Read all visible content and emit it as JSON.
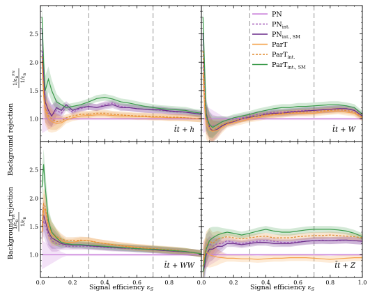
{
  "chart_data": {
    "type": "line",
    "xlabel": "Signal efficiency ε",
    "xlabel_sub": "S",
    "ylabel": "Background rejection",
    "ylabel_ratio_num": "1/ε",
    "ylabel_ratio_num_sub": "B",
    "ylabel_ratio_num_sup": "PN",
    "ylabel_ratio_den": "1/ε",
    "ylabel_ratio_den_sub": "B",
    "xlim": [
      0.0,
      1.0
    ],
    "ylim": [
      0.6,
      3.0
    ],
    "xticks": [
      "0.0",
      "0.2",
      "0.4",
      "0.6",
      "0.8",
      "1.0"
    ],
    "yticks": [
      "1.0",
      "1.5",
      "2.0",
      "2.5"
    ],
    "vlines": [
      0.3,
      0.7
    ],
    "legend": {
      "placement": "top-right of upper-right panel",
      "entries": [
        {
          "base": "PN",
          "sub": "",
          "color": "#c77dd9",
          "dash": "solid"
        },
        {
          "base": "PN",
          "sub": "int.",
          "color": "#a35ab8",
          "dash": "dashed"
        },
        {
          "base": "PN",
          "sub": "int., SM",
          "color": "#6a2c8a",
          "dash": "solid"
        },
        {
          "base": "ParT",
          "sub": "",
          "color": "#f5a24a",
          "dash": "solid"
        },
        {
          "base": "ParT",
          "sub": "int.",
          "color": "#e08a2e",
          "dash": "dashed"
        },
        {
          "base": "ParT",
          "sub": "int., SM",
          "color": "#3a9a4a",
          "dash": "solid"
        }
      ]
    },
    "x": [
      0.01,
      0.02,
      0.03,
      0.05,
      0.07,
      0.1,
      0.13,
      0.16,
      0.2,
      0.25,
      0.3,
      0.35,
      0.4,
      0.45,
      0.5,
      0.55,
      0.6,
      0.65,
      0.7,
      0.75,
      0.8,
      0.85,
      0.9,
      0.95,
      1.0
    ],
    "panels": [
      {
        "label": "t̄t + h",
        "series": [
          {
            "values": [
              1.0,
              1.0,
              1.0,
              1.0,
              1.0,
              1.0,
              1.0,
              1.0,
              1.0,
              1.0,
              1.0,
              1.0,
              1.0,
              1.0,
              1.0,
              1.0,
              1.0,
              1.0,
              1.0,
              1.0,
              1.0,
              1.0,
              1.0,
              1.0,
              1.0
            ]
          },
          {
            "values": [
              2.2,
              1.6,
              1.2,
              1.1,
              1.05,
              1.15,
              1.1,
              1.2,
              1.12,
              1.18,
              1.22,
              1.2,
              1.25,
              1.28,
              1.22,
              1.2,
              1.18,
              1.17,
              1.16,
              1.15,
              1.13,
              1.12,
              1.12,
              1.1,
              1.08
            ]
          },
          {
            "values": [
              2.6,
              1.8,
              1.3,
              1.15,
              1.05,
              1.2,
              1.15,
              1.25,
              1.15,
              1.2,
              1.22,
              1.2,
              1.23,
              1.25,
              1.2,
              1.2,
              1.18,
              1.17,
              1.16,
              1.16,
              1.14,
              1.13,
              1.12,
              1.1,
              1.08
            ]
          },
          {
            "values": [
              2.0,
              1.4,
              1.15,
              1.0,
              0.95,
              0.92,
              0.93,
              0.98,
              1.02,
              1.05,
              1.06,
              1.07,
              1.07,
              1.06,
              1.05,
              1.05,
              1.04,
              1.04,
              1.03,
              1.03,
              1.02,
              1.02,
              1.02,
              1.01,
              1.0
            ]
          },
          {
            "values": [
              2.1,
              1.5,
              1.2,
              1.05,
              1.0,
              0.95,
              0.96,
              1.02,
              1.05,
              1.08,
              1.08,
              1.1,
              1.1,
              1.08,
              1.07,
              1.06,
              1.05,
              1.05,
              1.04,
              1.04,
              1.03,
              1.03,
              1.02,
              1.01,
              1.0
            ]
          },
          {
            "values": [
              2.8,
              2.0,
              1.5,
              1.7,
              1.5,
              1.3,
              1.25,
              1.2,
              1.22,
              1.25,
              1.3,
              1.36,
              1.38,
              1.35,
              1.3,
              1.28,
              1.25,
              1.22,
              1.2,
              1.18,
              1.17,
              1.16,
              1.15,
              1.12,
              1.1
            ]
          }
        ]
      },
      {
        "label": "t̄t + W",
        "series": [
          {
            "values": [
              1.0,
              1.0,
              1.0,
              1.0,
              1.0,
              1.0,
              1.0,
              1.0,
              1.0,
              1.0,
              1.0,
              1.0,
              1.0,
              1.0,
              1.0,
              1.0,
              1.0,
              1.0,
              1.0,
              1.0,
              1.0,
              1.0,
              1.0,
              1.0,
              1.0
            ]
          },
          {
            "values": [
              2.0,
              1.4,
              1.0,
              0.9,
              0.88,
              0.9,
              0.95,
              0.98,
              1.0,
              1.02,
              1.05,
              1.08,
              1.1,
              1.12,
              1.12,
              1.13,
              1.14,
              1.15,
              1.15,
              1.16,
              1.17,
              1.18,
              1.18,
              1.15,
              1.05
            ]
          },
          {
            "values": [
              2.5,
              1.8,
              1.1,
              0.85,
              0.78,
              0.82,
              0.88,
              0.92,
              0.95,
              1.0,
              1.03,
              1.05,
              1.08,
              1.1,
              1.1,
              1.12,
              1.13,
              1.14,
              1.15,
              1.16,
              1.17,
              1.18,
              1.18,
              1.15,
              1.05
            ]
          },
          {
            "values": [
              1.8,
              1.2,
              0.9,
              0.8,
              0.78,
              0.8,
              0.85,
              0.9,
              0.93,
              0.96,
              1.0,
              1.02,
              1.05,
              1.07,
              1.08,
              1.1,
              1.1,
              1.1,
              1.1,
              1.12,
              1.13,
              1.14,
              1.12,
              1.1,
              1.02
            ]
          },
          {
            "values": [
              2.2,
              1.5,
              1.0,
              0.85,
              0.8,
              0.85,
              0.9,
              0.93,
              0.96,
              1.0,
              1.02,
              1.05,
              1.07,
              1.08,
              1.1,
              1.1,
              1.12,
              1.12,
              1.13,
              1.14,
              1.15,
              1.16,
              1.15,
              1.12,
              1.03
            ]
          },
          {
            "values": [
              2.8,
              1.9,
              1.05,
              0.9,
              0.85,
              0.9,
              0.95,
              0.98,
              1.02,
              1.05,
              1.08,
              1.12,
              1.15,
              1.18,
              1.2,
              1.2,
              1.22,
              1.22,
              1.23,
              1.24,
              1.25,
              1.25,
              1.23,
              1.2,
              1.08
            ]
          }
        ]
      },
      {
        "label": "t̄t + WW",
        "series": [
          {
            "values": [
              1.0,
              1.0,
              1.0,
              1.0,
              1.0,
              1.0,
              1.0,
              1.0,
              1.0,
              1.0,
              1.0,
              1.0,
              1.0,
              1.0,
              1.0,
              1.0,
              1.0,
              1.0,
              1.0,
              1.0,
              1.0,
              1.0,
              1.0,
              1.0,
              1.0
            ]
          },
          {
            "values": [
              1.5,
              1.6,
              1.5,
              1.35,
              1.25,
              1.2,
              1.18,
              1.15,
              1.15,
              1.15,
              1.15,
              1.14,
              1.13,
              1.12,
              1.12,
              1.11,
              1.1,
              1.1,
              1.09,
              1.08,
              1.07,
              1.06,
              1.05,
              1.04,
              1.02
            ]
          },
          {
            "values": [
              1.5,
              1.7,
              1.6,
              1.4,
              1.3,
              1.25,
              1.2,
              1.18,
              1.17,
              1.17,
              1.16,
              1.15,
              1.14,
              1.13,
              1.12,
              1.12,
              1.11,
              1.1,
              1.09,
              1.08,
              1.07,
              1.06,
              1.05,
              1.04,
              1.02
            ]
          },
          {
            "values": [
              1.4,
              1.8,
              1.8,
              1.5,
              1.35,
              1.3,
              1.25,
              1.22,
              1.22,
              1.25,
              1.25,
              1.22,
              1.2,
              1.18,
              1.16,
              1.15,
              1.13,
              1.12,
              1.1,
              1.09,
              1.08,
              1.07,
              1.06,
              1.04,
              1.02
            ]
          },
          {
            "values": [
              1.5,
              1.9,
              1.85,
              1.5,
              1.4,
              1.32,
              1.28,
              1.25,
              1.25,
              1.26,
              1.25,
              1.22,
              1.2,
              1.18,
              1.16,
              1.14,
              1.13,
              1.12,
              1.11,
              1.1,
              1.09,
              1.08,
              1.06,
              1.04,
              1.02
            ]
          },
          {
            "values": [
              2.2,
              2.6,
              2.2,
              1.6,
              1.4,
              1.3,
              1.22,
              1.2,
              1.18,
              1.18,
              1.17,
              1.16,
              1.15,
              1.14,
              1.13,
              1.12,
              1.11,
              1.1,
              1.1,
              1.09,
              1.08,
              1.07,
              1.06,
              1.04,
              1.02
            ]
          }
        ]
      },
      {
        "label": "t̄t + Z",
        "series": [
          {
            "values": [
              1.0,
              1.0,
              1.0,
              1.0,
              1.0,
              1.0,
              1.0,
              1.0,
              1.0,
              1.0,
              1.0,
              1.0,
              1.0,
              1.0,
              1.0,
              1.0,
              1.0,
              1.0,
              1.0,
              1.0,
              1.0,
              1.0,
              1.0,
              1.0,
              1.0
            ]
          },
          {
            "values": [
              0.8,
              0.9,
              1.1,
              1.2,
              1.15,
              1.2,
              1.2,
              1.25,
              1.22,
              1.2,
              1.22,
              1.24,
              1.25,
              1.24,
              1.22,
              1.22,
              1.23,
              1.24,
              1.25,
              1.26,
              1.25,
              1.25,
              1.26,
              1.25,
              1.24
            ]
          },
          {
            "values": [
              0.7,
              0.8,
              1.0,
              1.1,
              1.1,
              1.15,
              1.15,
              1.2,
              1.2,
              1.18,
              1.2,
              1.22,
              1.22,
              1.2,
              1.2,
              1.2,
              1.22,
              1.24,
              1.25,
              1.25,
              1.25,
              1.26,
              1.26,
              1.25,
              1.24
            ]
          },
          {
            "values": [
              0.9,
              1.0,
              1.05,
              1.0,
              0.98,
              0.96,
              0.95,
              0.94,
              0.94,
              0.93,
              0.93,
              0.92,
              0.93,
              0.94,
              0.94,
              0.95,
              0.95,
              0.95,
              0.94,
              0.93,
              0.92,
              0.93,
              0.94,
              0.95,
              0.95
            ]
          },
          {
            "values": [
              0.8,
              1.0,
              1.15,
              1.25,
              1.2,
              1.28,
              1.3,
              1.32,
              1.3,
              1.28,
              1.3,
              1.32,
              1.33,
              1.3,
              1.3,
              1.3,
              1.32,
              1.33,
              1.34,
              1.34,
              1.35,
              1.34,
              1.33,
              1.32,
              1.3
            ]
          },
          {
            "values": [
              0.7,
              0.9,
              1.1,
              1.25,
              1.3,
              1.35,
              1.38,
              1.4,
              1.38,
              1.35,
              1.38,
              1.42,
              1.45,
              1.42,
              1.4,
              1.4,
              1.42,
              1.44,
              1.45,
              1.45,
              1.45,
              1.44,
              1.42,
              1.38,
              1.32
            ]
          }
        ]
      }
    ]
  }
}
